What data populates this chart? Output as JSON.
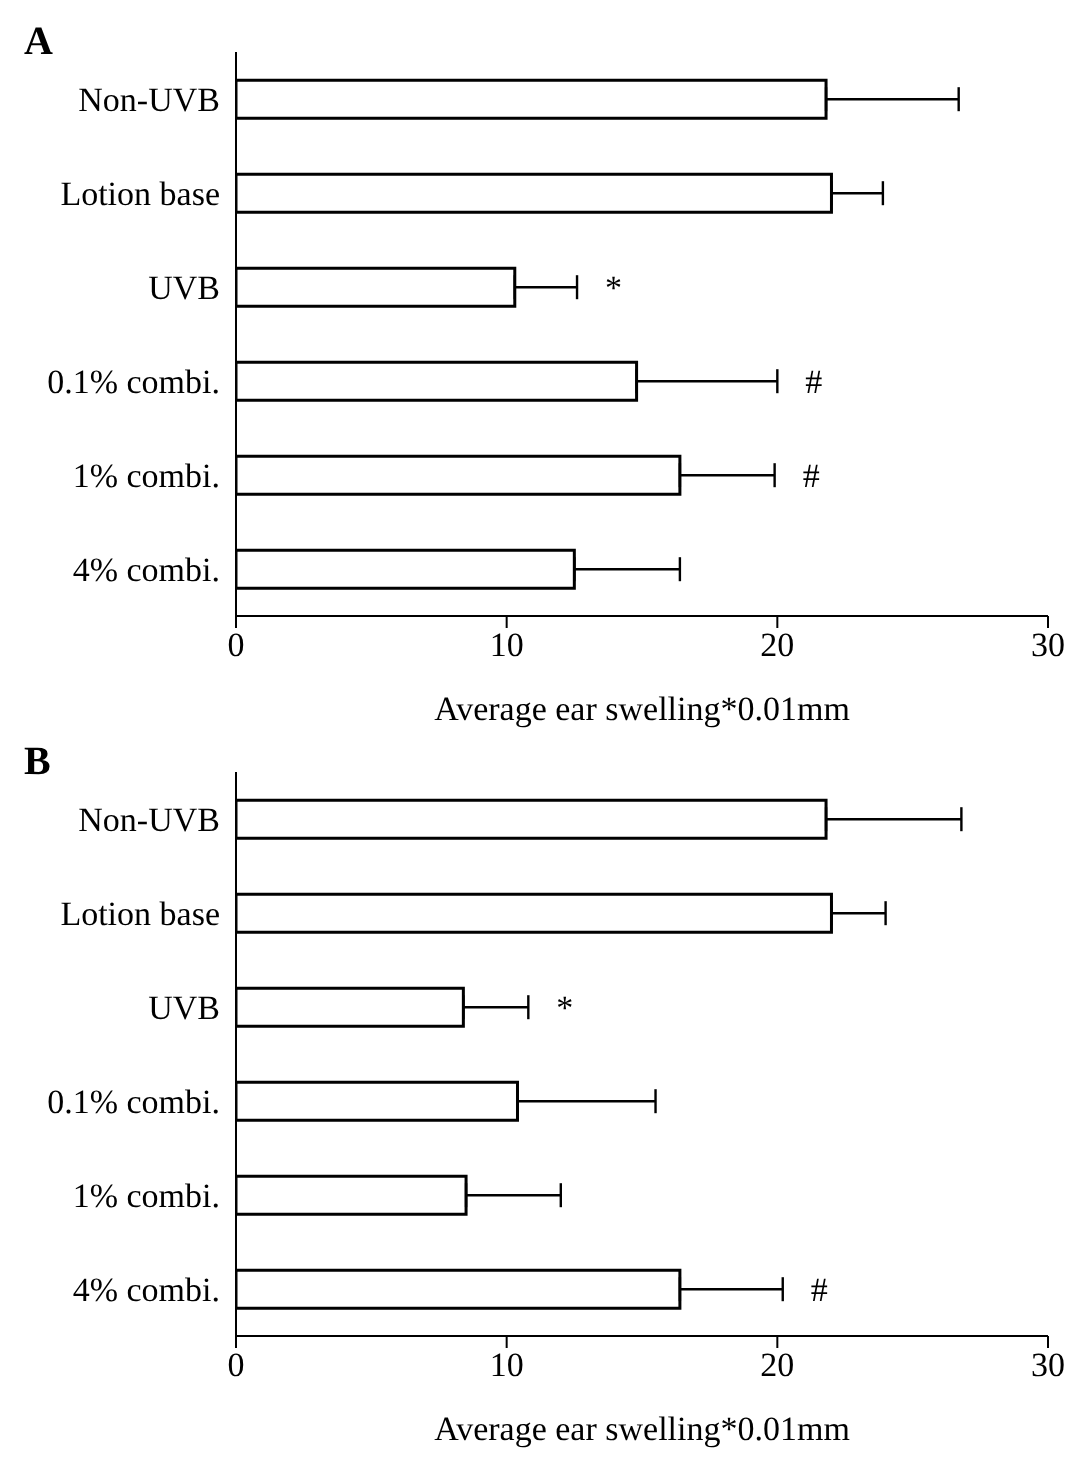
{
  "chart_data": [
    {
      "type": "bar",
      "orientation": "horizontal",
      "title": "A",
      "xlabel": "Average ear swelling*0.01mm",
      "categories": [
        "Non-UVB",
        "Lotion base",
        "UVB",
        "0.1% combi.",
        "1% combi.",
        "4% combi."
      ],
      "series": [
        {
          "color": "#ffffff",
          "values": [
            21.8,
            22.0,
            10.3,
            14.8,
            16.4,
            12.5
          ],
          "errors": [
            [
              21.8,
              26.7
            ],
            [
              22.0,
              23.9
            ],
            [
              10.3,
              12.6
            ],
            [
              14.8,
              20.0
            ],
            [
              16.4,
              19.9
            ],
            [
              12.5,
              16.4
            ]
          ]
        }
      ],
      "xlim": [
        0,
        30
      ],
      "xticks": [
        0,
        10,
        20,
        30
      ],
      "grid": false,
      "legend": false,
      "annotations": [
        {
          "text": "*",
          "x": 12.6,
          "y": "UVB"
        },
        {
          "text": "#",
          "x": 20.0,
          "y": "0.1% combi."
        },
        {
          "text": "#",
          "x": 19.9,
          "y": "1% combi."
        }
      ]
    },
    {
      "type": "bar",
      "orientation": "horizontal",
      "title": "B",
      "xlabel": "Average ear swelling*0.01mm",
      "categories": [
        "Non-UVB",
        "Lotion base",
        "UVB",
        "0.1% combi.",
        "1% combi.",
        "4% combi."
      ],
      "series": [
        {
          "color": "#ffffff",
          "values": [
            21.8,
            22.0,
            8.4,
            10.4,
            8.5,
            16.4
          ],
          "errors": [
            [
              21.8,
              26.8
            ],
            [
              22.0,
              24.0
            ],
            [
              8.4,
              10.8
            ],
            [
              10.4,
              15.5
            ],
            [
              8.5,
              12.0
            ],
            [
              16.4,
              20.2
            ]
          ]
        }
      ],
      "xlim": [
        0,
        30
      ],
      "xticks": [
        0,
        10,
        20,
        30
      ],
      "grid": false,
      "legend": false,
      "annotations": [
        {
          "text": "*",
          "x": 10.8,
          "y": "UVB"
        },
        {
          "text": "#",
          "x": 20.2,
          "y": "4% combi."
        }
      ]
    }
  ]
}
